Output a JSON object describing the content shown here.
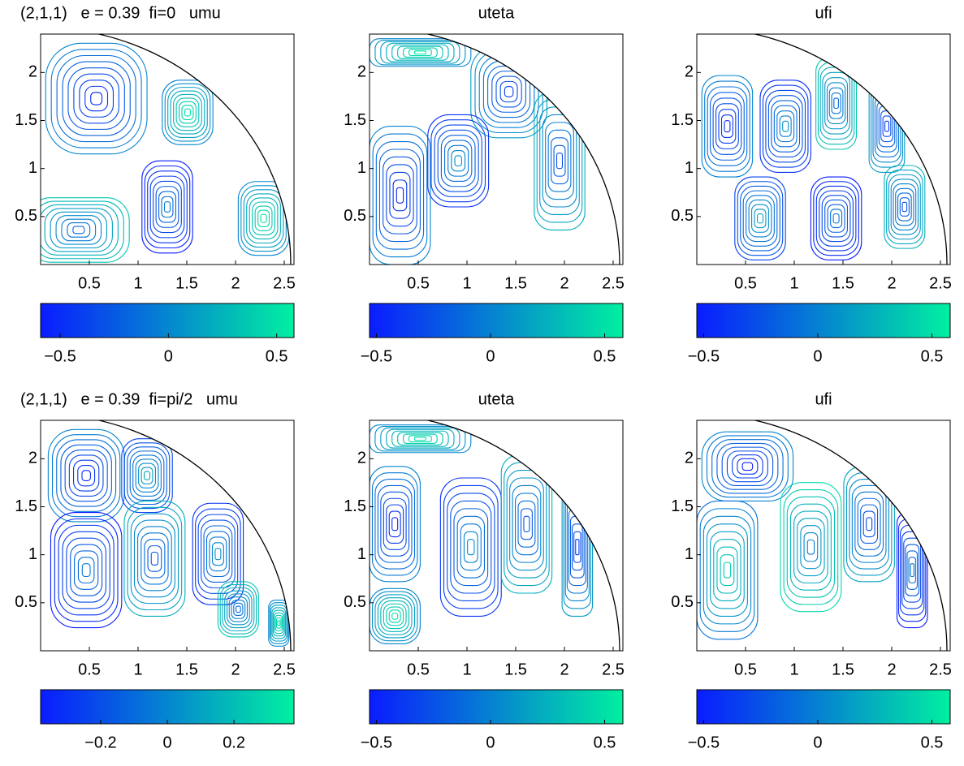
{
  "chart_data": [
    {
      "type": "contour",
      "title": "(2,1,1)   e = 0.39  fi=0   umu",
      "xlim": [
        0,
        2.6
      ],
      "ylim": [
        0,
        2.4
      ],
      "xticks": [
        0.5,
        1,
        1.5,
        2,
        2.5
      ],
      "yticks": [
        0.5,
        1,
        1.5,
        2
      ],
      "clim": [
        -0.59,
        0.58
      ],
      "cticks": [
        {
          "value": -0.5,
          "label": "−0.5"
        },
        0,
        0.5
      ],
      "colors": [
        "#0a1cff",
        "#00f0a0"
      ]
    },
    {
      "type": "contour",
      "title": "uteta",
      "xlim": [
        0,
        2.6
      ],
      "ylim": [
        0,
        2.4
      ],
      "xticks": [
        0.5,
        1,
        1.5,
        2,
        2.5
      ],
      "yticks": [
        0.5,
        1,
        1.5,
        2
      ],
      "clim": [
        -0.53,
        0.58
      ],
      "cticks": [
        {
          "value": -0.5,
          "label": "−0.5"
        },
        0,
        0.5
      ],
      "colors": [
        "#0a1cff",
        "#00f0a0"
      ]
    },
    {
      "type": "contour",
      "title": "ufi",
      "xlim": [
        0,
        2.6
      ],
      "ylim": [
        0,
        2.4
      ],
      "xticks": [
        0.5,
        1,
        1.5,
        2,
        2.5
      ],
      "yticks": [
        0.5,
        1,
        1.5,
        2
      ],
      "clim": [
        -0.53,
        0.58
      ],
      "cticks": [
        {
          "value": -0.5,
          "label": "−0.5"
        },
        0,
        0.5
      ],
      "colors": [
        "#0a1cff",
        "#00f0a0"
      ]
    },
    {
      "type": "contour",
      "title": "(2,1,1)   e = 0.39  fi=pi/2   umu",
      "xlim": [
        0,
        2.6
      ],
      "ylim": [
        0,
        2.4
      ],
      "xticks": [
        0.5,
        1,
        1.5,
        2,
        2.5
      ],
      "yticks": [
        0.5,
        1,
        1.5,
        2
      ],
      "clim": [
        -0.38,
        0.38
      ],
      "cticks": [
        {
          "value": -0.2,
          "label": "−0.2"
        },
        0,
        0.2
      ],
      "colors": [
        "#0a1cff",
        "#00f0a0"
      ]
    },
    {
      "type": "contour",
      "title": "uteta",
      "xlim": [
        0,
        2.6
      ],
      "ylim": [
        0,
        2.4
      ],
      "xticks": [
        0.5,
        1,
        1.5,
        2,
        2.5
      ],
      "yticks": [
        0.5,
        1,
        1.5,
        2
      ],
      "clim": [
        -0.53,
        0.58
      ],
      "cticks": [
        {
          "value": -0.5,
          "label": "−0.5"
        },
        0,
        0.5
      ],
      "colors": [
        "#0a1cff",
        "#00f0a0"
      ]
    },
    {
      "type": "contour",
      "title": "ufi",
      "xlim": [
        0,
        2.6
      ],
      "ylim": [
        0,
        2.4
      ],
      "xticks": [
        0.5,
        1,
        1.5,
        2,
        2.5
      ],
      "yticks": [
        0.5,
        1,
        1.5,
        2
      ],
      "clim": [
        -0.53,
        0.58
      ],
      "cticks": [
        {
          "value": -0.5,
          "label": "−0.5"
        },
        0,
        0.5
      ],
      "colors": [
        "#0a1cff",
        "#00f0a0"
      ]
    }
  ]
}
